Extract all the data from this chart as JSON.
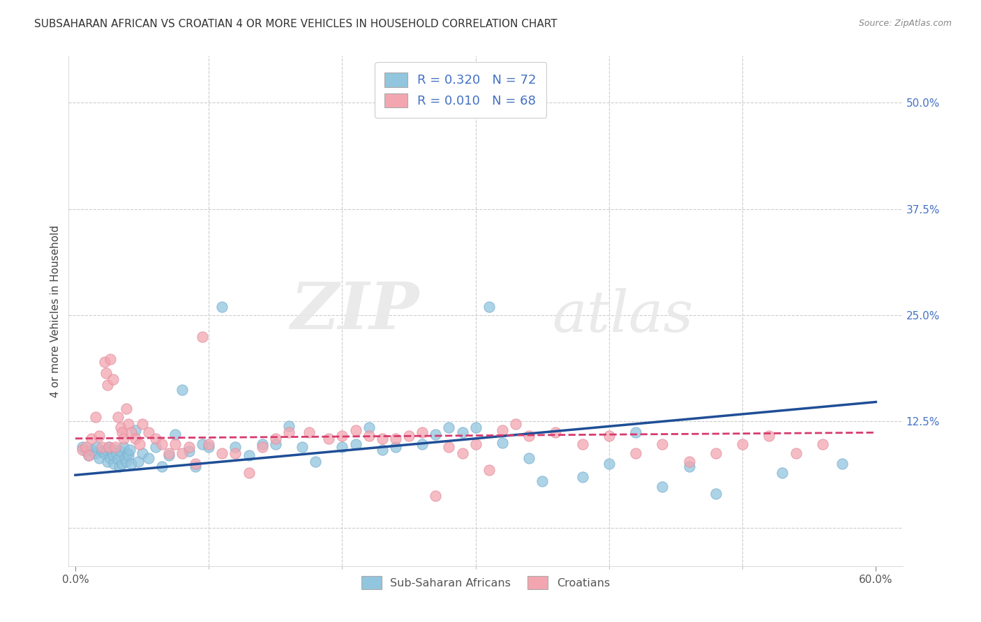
{
  "title": "SUBSAHARAN AFRICAN VS CROATIAN 4 OR MORE VEHICLES IN HOUSEHOLD CORRELATION CHART",
  "source": "Source: ZipAtlas.com",
  "ylabel": "4 or more Vehicles in Household",
  "ytick_labels": [
    "12.5%",
    "25.0%",
    "37.5%",
    "50.0%"
  ],
  "ytick_values": [
    0.125,
    0.25,
    0.375,
    0.5
  ],
  "xlim": [
    -0.005,
    0.62
  ],
  "ylim": [
    -0.045,
    0.555
  ],
  "blue_color": "#92c5de",
  "pink_color": "#f4a6b0",
  "blue_line_color": "#1f4e96",
  "pink_line_color": "#d63b6e",
  "legend_blue_label": "R = 0.320   N = 72",
  "legend_pink_label": "R = 0.010   N = 68",
  "legend_number_color": "#4472c4",
  "watermark_zip": "ZIP",
  "watermark_atlas": "atlas",
  "blue_R": 0.32,
  "blue_N": 72,
  "pink_R": 0.01,
  "pink_N": 68,
  "blue_scatter_x": [
    0.005,
    0.008,
    0.01,
    0.012,
    0.015,
    0.016,
    0.018,
    0.02,
    0.022,
    0.023,
    0.024,
    0.025,
    0.026,
    0.027,
    0.028,
    0.029,
    0.03,
    0.031,
    0.032,
    0.033,
    0.034,
    0.035,
    0.036,
    0.037,
    0.038,
    0.039,
    0.04,
    0.041,
    0.042,
    0.045,
    0.047,
    0.05,
    0.055,
    0.06,
    0.065,
    0.07,
    0.075,
    0.08,
    0.085,
    0.09,
    0.095,
    0.1,
    0.11,
    0.12,
    0.13,
    0.14,
    0.15,
    0.16,
    0.17,
    0.18,
    0.2,
    0.21,
    0.22,
    0.23,
    0.24,
    0.26,
    0.27,
    0.28,
    0.29,
    0.3,
    0.31,
    0.32,
    0.34,
    0.35,
    0.38,
    0.4,
    0.42,
    0.44,
    0.46,
    0.48,
    0.53,
    0.575
  ],
  "blue_scatter_y": [
    0.095,
    0.09,
    0.085,
    0.092,
    0.088,
    0.095,
    0.082,
    0.09,
    0.088,
    0.092,
    0.078,
    0.095,
    0.082,
    0.09,
    0.085,
    0.075,
    0.092,
    0.088,
    0.08,
    0.072,
    0.09,
    0.075,
    0.095,
    0.082,
    0.078,
    0.088,
    0.085,
    0.092,
    0.075,
    0.115,
    0.078,
    0.088,
    0.082,
    0.095,
    0.072,
    0.085,
    0.11,
    0.162,
    0.09,
    0.072,
    0.098,
    0.095,
    0.26,
    0.095,
    0.085,
    0.098,
    0.098,
    0.12,
    0.095,
    0.078,
    0.095,
    0.098,
    0.118,
    0.092,
    0.095,
    0.098,
    0.11,
    0.118,
    0.112,
    0.118,
    0.26,
    0.1,
    0.082,
    0.055,
    0.06,
    0.075,
    0.112,
    0.048,
    0.072,
    0.04,
    0.065,
    0.075
  ],
  "pink_scatter_x": [
    0.005,
    0.008,
    0.01,
    0.012,
    0.015,
    0.018,
    0.02,
    0.022,
    0.023,
    0.024,
    0.025,
    0.026,
    0.028,
    0.03,
    0.032,
    0.034,
    0.035,
    0.036,
    0.038,
    0.04,
    0.042,
    0.045,
    0.048,
    0.05,
    0.055,
    0.06,
    0.065,
    0.07,
    0.075,
    0.08,
    0.085,
    0.09,
    0.095,
    0.1,
    0.11,
    0.12,
    0.13,
    0.14,
    0.15,
    0.16,
    0.175,
    0.19,
    0.2,
    0.21,
    0.22,
    0.23,
    0.24,
    0.25,
    0.26,
    0.27,
    0.28,
    0.29,
    0.3,
    0.31,
    0.32,
    0.33,
    0.34,
    0.36,
    0.38,
    0.4,
    0.42,
    0.44,
    0.46,
    0.48,
    0.5,
    0.52,
    0.54,
    0.56
  ],
  "pink_scatter_y": [
    0.092,
    0.095,
    0.085,
    0.105,
    0.13,
    0.108,
    0.095,
    0.195,
    0.182,
    0.168,
    0.095,
    0.198,
    0.175,
    0.095,
    0.13,
    0.118,
    0.112,
    0.105,
    0.14,
    0.122,
    0.112,
    0.105,
    0.098,
    0.122,
    0.112,
    0.105,
    0.098,
    0.088,
    0.098,
    0.088,
    0.095,
    0.075,
    0.225,
    0.098,
    0.088,
    0.088,
    0.065,
    0.095,
    0.105,
    0.112,
    0.112,
    0.105,
    0.108,
    0.115,
    0.108,
    0.105,
    0.105,
    0.108,
    0.112,
    0.038,
    0.095,
    0.088,
    0.098,
    0.068,
    0.115,
    0.122,
    0.108,
    0.112,
    0.098,
    0.108,
    0.088,
    0.098,
    0.078,
    0.088,
    0.098,
    0.108,
    0.088,
    0.098
  ],
  "blue_line_x": [
    0.0,
    0.6
  ],
  "blue_line_y_start": 0.062,
  "blue_line_y_end": 0.148,
  "pink_line_x": [
    0.0,
    0.6
  ],
  "pink_line_y_start": 0.105,
  "pink_line_y_end": 0.112,
  "xtick_left_label": "0.0%",
  "xtick_right_label": "60.0%",
  "xtick_left_pos": 0.0,
  "xtick_right_pos": 0.6,
  "bottom_legend_blue": "Sub-Saharan Africans",
  "bottom_legend_pink": "Croatians",
  "grid_color": "#cccccc",
  "grid_yticks": [
    0.0,
    0.125,
    0.25,
    0.375,
    0.5
  ]
}
